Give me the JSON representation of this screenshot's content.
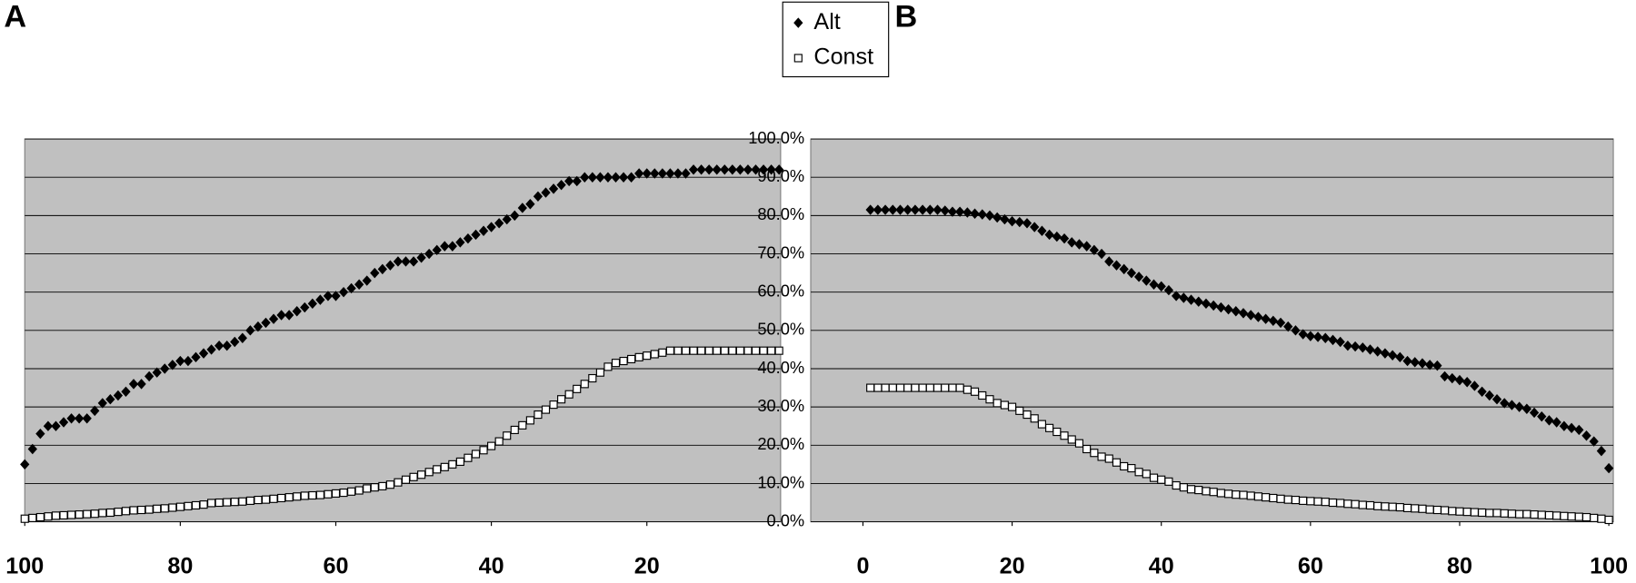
{
  "chart_data": [
    {
      "type": "scatter",
      "panel_label": "A",
      "legend": "top-center",
      "xlim": [
        100,
        2.8
      ],
      "xticks": [
        100,
        80,
        60,
        40,
        20
      ],
      "ylim": [
        0,
        100
      ],
      "yticks": [
        0,
        10,
        20,
        30,
        40,
        50,
        60,
        70,
        80,
        90,
        100
      ],
      "ytick_labels": false,
      "grid": true,
      "x": [
        100,
        99,
        98,
        97,
        96,
        95,
        94,
        93,
        92,
        91,
        90,
        89,
        88,
        87,
        86,
        85,
        84,
        83,
        82,
        81,
        80,
        79,
        78,
        77,
        76,
        75,
        74,
        73,
        72,
        71,
        70,
        69,
        68,
        67,
        66,
        65,
        64,
        63,
        62,
        61,
        60,
        59,
        58,
        57,
        56,
        55,
        54,
        53,
        52,
        51,
        50,
        49,
        48,
        47,
        46,
        45,
        44,
        43,
        42,
        41,
        40,
        39,
        38,
        37,
        36,
        35,
        34,
        33,
        32,
        31,
        30,
        29,
        28,
        27,
        26,
        25,
        24,
        23,
        22,
        21,
        20,
        19,
        18,
        17,
        16,
        15,
        14,
        13,
        12,
        11,
        10,
        9,
        8,
        7,
        6,
        5,
        4,
        3
      ],
      "series": [
        {
          "name": "Alt",
          "marker": "diamond",
          "color": "#000000",
          "values": [
            15,
            19,
            23,
            25,
            25,
            26,
            27,
            27,
            27,
            29,
            31,
            32,
            33,
            34,
            36,
            36,
            38,
            39,
            40,
            41,
            42,
            42,
            43,
            44,
            45,
            46,
            46,
            47,
            48,
            50,
            51,
            52,
            53,
            54,
            54,
            55,
            56,
            57,
            58,
            59,
            59,
            60,
            61,
            62,
            63,
            65,
            66,
            67,
            68,
            68,
            68,
            69,
            70,
            71,
            72,
            72,
            73,
            74,
            75,
            76,
            77,
            78,
            79,
            80,
            82,
            83,
            85,
            86,
            87,
            88,
            89,
            89,
            90,
            90,
            90,
            90,
            90,
            90,
            90,
            91,
            91,
            91,
            91,
            91,
            91,
            91,
            92,
            92,
            92,
            92,
            92,
            92,
            92,
            92,
            92,
            92,
            92,
            92
          ]
        },
        {
          "name": "Const",
          "marker": "open-square",
          "color": "#000000",
          "values": [
            0.8,
            1,
            1.2,
            1.4,
            1.6,
            1.7,
            1.8,
            1.9,
            2,
            2.1,
            2.3,
            2.4,
            2.6,
            2.8,
            3,
            3.1,
            3.2,
            3.4,
            3.5,
            3.7,
            3.9,
            4.1,
            4.3,
            4.5,
            4.9,
            5,
            5.1,
            5.2,
            5.3,
            5.5,
            5.7,
            5.8,
            6,
            6.2,
            6.4,
            6.6,
            6.8,
            6.9,
            7,
            7.2,
            7.4,
            7.6,
            7.9,
            8.2,
            8.7,
            9,
            9.3,
            9.7,
            10.3,
            11,
            11.7,
            12.3,
            13,
            13.7,
            14.3,
            15,
            15.7,
            16.7,
            17.7,
            18.7,
            19.8,
            21,
            22.5,
            24,
            25.2,
            26.5,
            28,
            29.3,
            30.6,
            32,
            33.3,
            34.7,
            36,
            37.5,
            39,
            40.5,
            41.5,
            42,
            42.5,
            43,
            43.4,
            43.8,
            44.2,
            44.7,
            44.7,
            44.7,
            44.7,
            44.7,
            44.7,
            44.7,
            44.7,
            44.7,
            44.7,
            44.7,
            44.7,
            44.7,
            44.7,
            44.7
          ]
        }
      ]
    },
    {
      "type": "scatter",
      "panel_label": "B",
      "xlim": [
        -7,
        100.6
      ],
      "xticks": [
        0,
        20,
        40,
        60,
        80,
        100
      ],
      "ylim": [
        0,
        100
      ],
      "ytick_labels": true,
      "grid": true,
      "yticks": [
        {
          "value": 0,
          "label": "0.0%"
        },
        {
          "value": 10,
          "label": "10.0%"
        },
        {
          "value": 20,
          "label": "20.0%"
        },
        {
          "value": 30,
          "label": "30.0%"
        },
        {
          "value": 40,
          "label": "40.0%"
        },
        {
          "value": 50,
          "label": "50.0%"
        },
        {
          "value": 60,
          "label": "60.0%"
        },
        {
          "value": 70,
          "label": "70.0%"
        },
        {
          "value": 80,
          "label": "80.0%"
        },
        {
          "value": 90,
          "label": "90.0%"
        },
        {
          "value": 100,
          "label": "100.0%"
        }
      ],
      "x": [
        1,
        2,
        3,
        4,
        5,
        6,
        7,
        8,
        9,
        10,
        11,
        12,
        13,
        14,
        15,
        16,
        17,
        18,
        19,
        20,
        21,
        22,
        23,
        24,
        25,
        26,
        27,
        28,
        29,
        30,
        31,
        32,
        33,
        34,
        35,
        36,
        37,
        38,
        39,
        40,
        41,
        42,
        43,
        44,
        45,
        46,
        47,
        48,
        49,
        50,
        51,
        52,
        53,
        54,
        55,
        56,
        57,
        58,
        59,
        60,
        61,
        62,
        63,
        64,
        65,
        66,
        67,
        68,
        69,
        70,
        71,
        72,
        73,
        74,
        75,
        76,
        77,
        78,
        79,
        80,
        81,
        82,
        83,
        84,
        85,
        86,
        87,
        88,
        89,
        90,
        91,
        92,
        93,
        94,
        95,
        96,
        97,
        98,
        99,
        100
      ],
      "series": [
        {
          "marker": "diamond",
          "color": "#000000",
          "values": [
            81.5,
            81.5,
            81.5,
            81.5,
            81.5,
            81.5,
            81.5,
            81.5,
            81.5,
            81.5,
            81.3,
            81,
            81,
            80.8,
            80.5,
            80.3,
            80,
            79.5,
            79,
            78.5,
            78.3,
            78,
            77,
            76,
            75,
            74.5,
            74,
            73,
            72.5,
            72,
            71,
            70,
            68,
            67,
            66,
            65,
            64,
            63,
            62,
            61.5,
            60.5,
            59,
            58.5,
            58,
            57.5,
            57,
            56.5,
            56,
            55.5,
            55,
            54.5,
            54,
            53.5,
            53,
            52.5,
            52,
            51,
            50,
            49,
            48.5,
            48.3,
            48,
            47.5,
            47,
            46,
            45.8,
            45.5,
            45,
            44.5,
            44,
            43.5,
            43,
            42,
            41.7,
            41.4,
            41,
            40.8,
            38,
            37.5,
            37,
            36.5,
            35.5,
            34,
            33,
            32,
            31,
            30.5,
            30,
            29.5,
            28.5,
            27.5,
            26.5,
            26,
            25,
            24.5,
            24,
            22.5,
            21,
            18.5,
            14
          ]
        },
        {
          "marker": "open-square",
          "color": "#000000",
          "values": [
            35,
            35,
            35,
            35,
            35,
            35,
            35,
            35,
            35,
            35,
            35,
            35,
            35,
            34.5,
            34,
            33,
            32,
            31,
            30.5,
            30,
            29,
            28,
            27,
            25.5,
            24.5,
            23.5,
            22.5,
            21.5,
            20.5,
            19,
            18,
            17,
            16.5,
            15.5,
            14.5,
            14,
            13,
            12.5,
            11.5,
            11,
            10.5,
            9.5,
            9,
            8.5,
            8.3,
            8,
            7.8,
            7.5,
            7.3,
            7.1,
            7,
            6.8,
            6.6,
            6.4,
            6.2,
            6,
            5.8,
            5.7,
            5.5,
            5.4,
            5.3,
            5.2,
            5,
            4.9,
            4.7,
            4.6,
            4.4,
            4.3,
            4.1,
            4,
            3.9,
            3.8,
            3.6,
            3.5,
            3.4,
            3.2,
            3.1,
            3,
            2.8,
            2.7,
            2.6,
            2.5,
            2.4,
            2.3,
            2.3,
            2.2,
            2.1,
            2,
            2,
            1.9,
            1.8,
            1.7,
            1.6,
            1.5,
            1.4,
            1.3,
            1.2,
            1,
            0.8,
            0.5
          ]
        }
      ]
    }
  ]
}
